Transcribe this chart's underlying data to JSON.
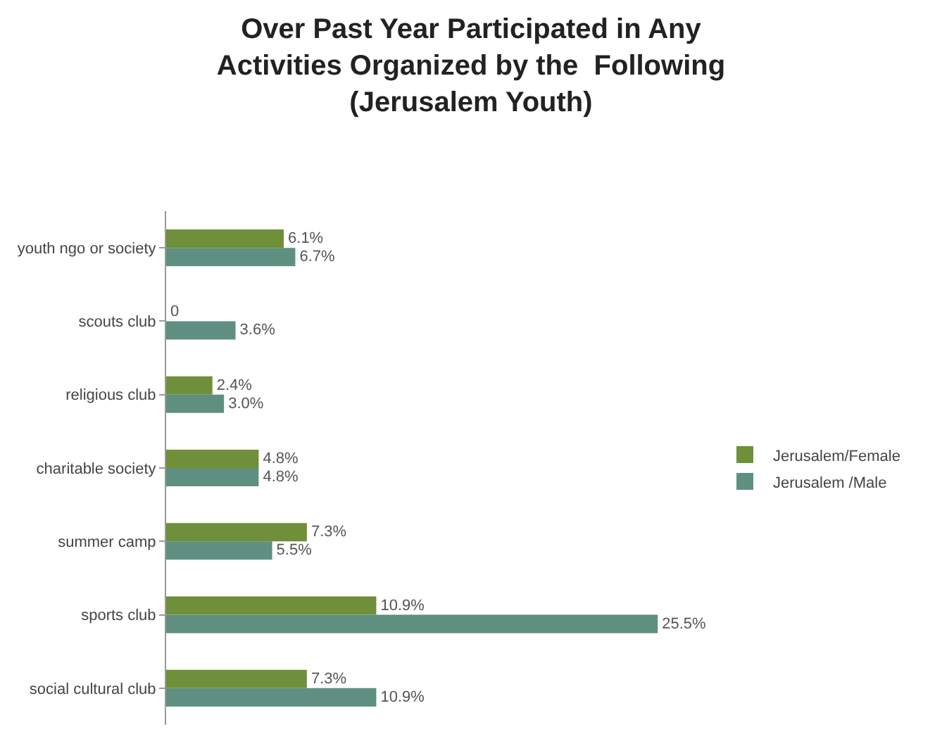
{
  "chart_data": {
    "type": "bar",
    "orientation": "horizontal",
    "title": "Over Past Year Participated in Any Activities Organized by the  Following (Jerusalem Youth)",
    "categories": [
      "youth ngo or society",
      "scouts club",
      "religious club",
      "charitable society",
      "summer camp",
      "sports club",
      "social cultural club"
    ],
    "series": [
      {
        "name": "Jerusalem/Female",
        "color": "#6f8f3a",
        "values": [
          6.1,
          0,
          2.4,
          4.8,
          7.3,
          10.9,
          7.3
        ],
        "value_labels": [
          "6.1%",
          "0",
          "2.4%",
          "4.8%",
          "7.3%",
          "10.9%",
          "7.3%"
        ]
      },
      {
        "name": "Jerusalem /Male",
        "color": "#5f8f80",
        "values": [
          6.7,
          3.6,
          3.0,
          4.8,
          5.5,
          25.5,
          10.9
        ],
        "value_labels": [
          "6.7%",
          "3.6%",
          "3.0%",
          "4.8%",
          "5.5%",
          "25.5%",
          "10.9%"
        ]
      }
    ],
    "tick_labels": "y",
    "legend": "right"
  }
}
